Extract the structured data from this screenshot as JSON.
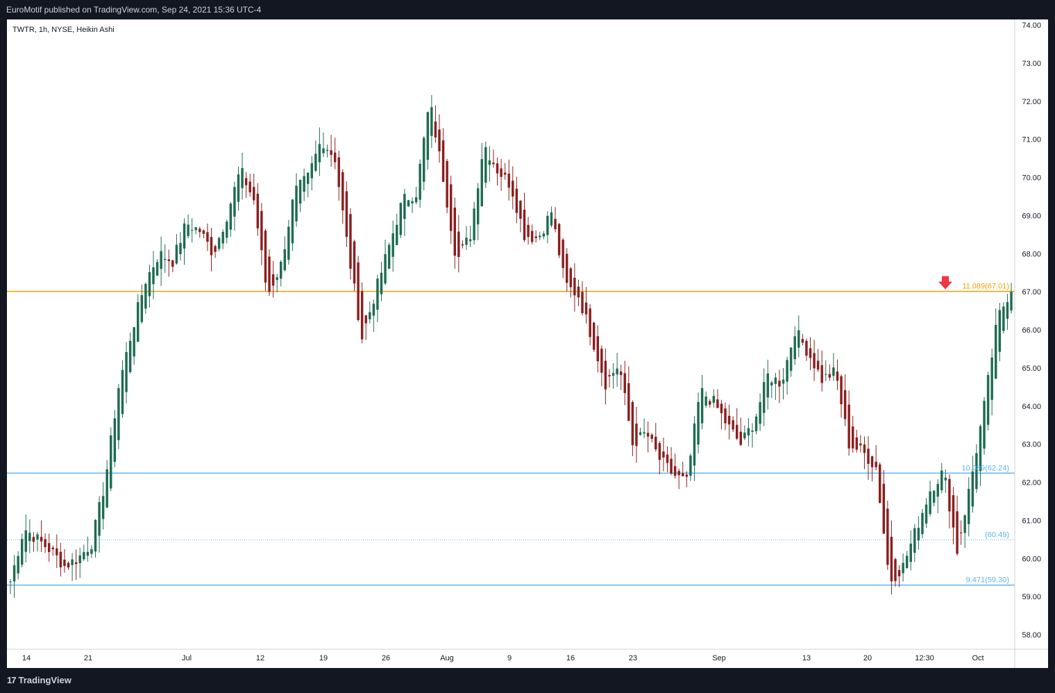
{
  "header": {
    "publisher_text": "EuroMotif published on TradingView.com, Sep 24, 2021 15:36 UTC-4"
  },
  "footer": {
    "brand": "TradingView",
    "logo_icon": "tradingview-logo-icon"
  },
  "chart_data": {
    "type": "candlestick",
    "legend": "TWTR, 1h, NYSE, Heikin Ashi",
    "y_axis": {
      "ticks": [
        "58.00",
        "59.00",
        "60.00",
        "61.00",
        "62.00",
        "63.00",
        "64.00",
        "65.00",
        "66.00",
        "67.00",
        "68.00",
        "69.00",
        "70.00",
        "71.00",
        "72.00",
        "73.00",
        "74.00"
      ],
      "ylim": [
        57.6,
        74.3
      ],
      "position": "right"
    },
    "x_axis": {
      "ticks": [
        "14",
        "21",
        "Jul",
        "12",
        "19",
        "26",
        "Aug",
        "9",
        "16",
        "23",
        "Sep",
        "13",
        "20",
        "12:30",
        "Oct"
      ]
    },
    "colors": {
      "up": "#26a69a",
      "up_dark": "#1e6b52",
      "down": "#8b1e1e",
      "level_orange": "#f59f00",
      "level_blue": "#5fb3f0",
      "marker_red": "#f23645"
    },
    "levels": [
      {
        "value": 67.01,
        "label": "11.089(67.01)",
        "color": "#f59f00",
        "style": "solid"
      },
      {
        "value": 62.24,
        "label": "10.089(62.24)",
        "color": "#5fb3f0",
        "style": "solid"
      },
      {
        "value": 60.49,
        "label": "(60.49)",
        "color": "#5fb3f0",
        "style": "dotted"
      },
      {
        "value": 59.3,
        "label": "9.471(59.30)",
        "color": "#5fb3f0",
        "style": "solid"
      }
    ],
    "marker": {
      "type": "down-arrow",
      "value": 67.01,
      "color": "#f23645"
    },
    "price_path": [
      {
        "d": "Jun 14",
        "v": 59.4
      },
      {
        "d": "Jun 15",
        "v": 60.8
      },
      {
        "d": "Jun 16",
        "v": 60.5
      },
      {
        "d": "Jun 17",
        "v": 60.2
      },
      {
        "d": "Jun 18",
        "v": 59.8
      },
      {
        "d": "Jun 21",
        "v": 60.0
      },
      {
        "d": "Jun 22",
        "v": 60.4
      },
      {
        "d": "Jun 23",
        "v": 62.0
      },
      {
        "d": "Jun 24",
        "v": 64.5
      },
      {
        "d": "Jun 25",
        "v": 66.0
      },
      {
        "d": "Jun 26",
        "v": 67.3
      },
      {
        "d": "Jun 27",
        "v": 68.0
      },
      {
        "d": "Jun 28",
        "v": 67.8
      },
      {
        "d": "Jun 29",
        "v": 68.8
      },
      {
        "d": "Jun 30",
        "v": 68.6
      },
      {
        "d": "Jul 1",
        "v": 68.0
      },
      {
        "d": "Jul 2",
        "v": 69.0
      },
      {
        "d": "Jul 6",
        "v": 70.2
      },
      {
        "d": "Jul 7",
        "v": 69.4
      },
      {
        "d": "Jul 8",
        "v": 66.9
      },
      {
        "d": "Jul 9",
        "v": 67.7
      },
      {
        "d": "Jul 12",
        "v": 69.6
      },
      {
        "d": "Jul 13",
        "v": 70.0
      },
      {
        "d": "Jul 14",
        "v": 71.0
      },
      {
        "d": "Jul 15",
        "v": 70.5
      },
      {
        "d": "Jul 16",
        "v": 68.0
      },
      {
        "d": "Jul 19",
        "v": 65.8
      },
      {
        "d": "Jul 20",
        "v": 67.0
      },
      {
        "d": "Jul 21",
        "v": 68.2
      },
      {
        "d": "Jul 22",
        "v": 69.4
      },
      {
        "d": "Jul 23",
        "v": 69.6
      },
      {
        "d": "Jul 26",
        "v": 72.0
      },
      {
        "d": "Jul 27",
        "v": 70.0
      },
      {
        "d": "Jul 28",
        "v": 67.8
      },
      {
        "d": "Jul 29",
        "v": 68.5
      },
      {
        "d": "Jul 30",
        "v": 70.9
      },
      {
        "d": "Aug 2",
        "v": 70.2
      },
      {
        "d": "Aug 3",
        "v": 69.8
      },
      {
        "d": "Aug 4",
        "v": 68.5
      },
      {
        "d": "Aug 5",
        "v": 68.4
      },
      {
        "d": "Aug 6",
        "v": 69.1
      },
      {
        "d": "Aug 9",
        "v": 67.2
      },
      {
        "d": "Aug 10",
        "v": 66.9
      },
      {
        "d": "Aug 11",
        "v": 65.8
      },
      {
        "d": "Aug 12",
        "v": 64.6
      },
      {
        "d": "Aug 13",
        "v": 65.1
      },
      {
        "d": "Aug 16",
        "v": 63.0
      },
      {
        "d": "Aug 17",
        "v": 63.3
      },
      {
        "d": "Aug 18",
        "v": 62.6
      },
      {
        "d": "Aug 19",
        "v": 62.2
      },
      {
        "d": "Aug 20",
        "v": 62.0
      },
      {
        "d": "Aug 23",
        "v": 64.4
      },
      {
        "d": "Aug 24",
        "v": 64.1
      },
      {
        "d": "Aug 25",
        "v": 63.5
      },
      {
        "d": "Aug 26",
        "v": 63.0
      },
      {
        "d": "Aug 27",
        "v": 63.6
      },
      {
        "d": "Aug 30",
        "v": 64.8
      },
      {
        "d": "Aug 31",
        "v": 64.6
      },
      {
        "d": "Sep 1",
        "v": 66.0
      },
      {
        "d": "Sep 2",
        "v": 65.4
      },
      {
        "d": "Sep 3",
        "v": 64.7
      },
      {
        "d": "Sep 7",
        "v": 64.9
      },
      {
        "d": "Sep 8",
        "v": 63.0
      },
      {
        "d": "Sep 9",
        "v": 62.8
      },
      {
        "d": "Sep 10",
        "v": 62.4
      },
      {
        "d": "Sep 13",
        "v": 59.4
      },
      {
        "d": "Sep 14",
        "v": 59.8
      },
      {
        "d": "Sep 15",
        "v": 60.8
      },
      {
        "d": "Sep 16",
        "v": 61.8
      },
      {
        "d": "Sep 17",
        "v": 62.3
      },
      {
        "d": "Sep 20",
        "v": 60.2
      },
      {
        "d": "Sep 21",
        "v": 62.0
      },
      {
        "d": "Sep 22",
        "v": 64.0
      },
      {
        "d": "Sep 23",
        "v": 66.3
      },
      {
        "d": "Sep 24",
        "v": 67.1
      }
    ]
  }
}
